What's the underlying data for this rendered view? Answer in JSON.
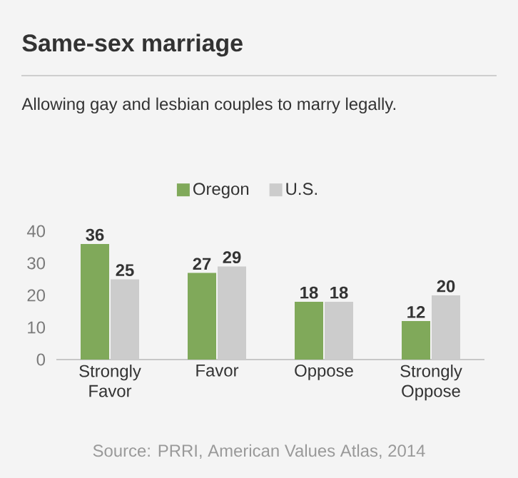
{
  "chart_data": {
    "type": "bar",
    "title": "Same-sex marriage",
    "subtitle": "Allowing gay and lesbian couples to marry legally.",
    "categories": [
      "Strongly Favor",
      "Favor",
      "Oppose",
      "Strongly Oppose"
    ],
    "series": [
      {
        "name": "Oregon",
        "color": "#80a95a",
        "values": [
          36,
          27,
          18,
          12
        ]
      },
      {
        "name": "U.S.",
        "color": "#cccccc",
        "values": [
          25,
          29,
          18,
          20
        ]
      }
    ],
    "ylim": [
      0,
      40
    ],
    "yticks": [
      0,
      10,
      20,
      30,
      40
    ],
    "data_labels": true,
    "legend": "top",
    "annotations": [
      "Source: PRRI, American Values Atlas, 2014"
    ]
  }
}
